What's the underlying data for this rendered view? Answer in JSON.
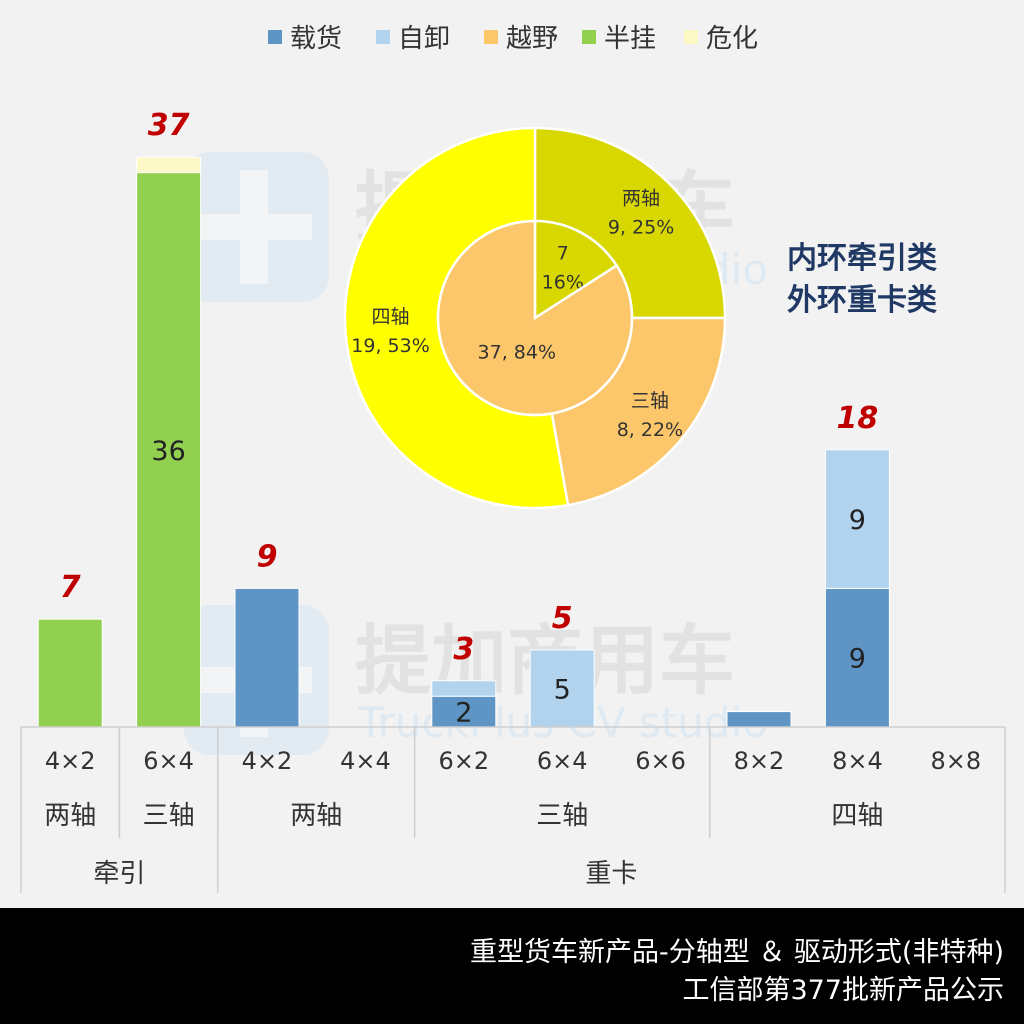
{
  "chart_data": [
    {
      "type": "bar",
      "stacked": true,
      "legend": {
        "placement": "top",
        "entries": [
          "载货",
          "自卸",
          "越野",
          "半挂",
          "危化"
        ]
      },
      "colors": {
        "载货": "#5e95c5",
        "自卸": "#b1d3ee",
        "越野": "#fcc76a",
        "半挂": "#92d050",
        "危化": "#fdf9c6"
      },
      "categories": [
        {
          "drive": "4×2",
          "axle": "两轴",
          "group": "牵引"
        },
        {
          "drive": "6×4",
          "axle": "三轴",
          "group": "牵引"
        },
        {
          "drive": "4×2",
          "axle": "两轴",
          "group": "重卡"
        },
        {
          "drive": "4×4",
          "axle": "两轴",
          "group": "重卡"
        },
        {
          "drive": "6×2",
          "axle": "三轴",
          "group": "重卡"
        },
        {
          "drive": "6×4",
          "axle": "三轴",
          "group": "重卡"
        },
        {
          "drive": "6×6",
          "axle": "三轴",
          "group": "重卡"
        },
        {
          "drive": "8×2",
          "axle": "四轴",
          "group": "重卡"
        },
        {
          "drive": "8×4",
          "axle": "四轴",
          "group": "重卡"
        },
        {
          "drive": "8×8",
          "axle": "四轴",
          "group": "重卡"
        }
      ],
      "axle_labels": [
        "两轴",
        "三轴",
        "两轴",
        "三轴",
        "四轴"
      ],
      "group_labels": [
        "牵引",
        "重卡"
      ],
      "series": [
        {
          "name": "载货",
          "values": [
            0,
            0,
            9,
            0,
            2,
            0,
            0,
            1,
            9,
            0
          ]
        },
        {
          "name": "自卸",
          "values": [
            0,
            0,
            0,
            0,
            1,
            5,
            0,
            0,
            9,
            0
          ]
        },
        {
          "name": "越野",
          "values": [
            0,
            0,
            0,
            0,
            0,
            0,
            0,
            0,
            0,
            0
          ]
        },
        {
          "name": "半挂",
          "values": [
            7,
            36,
            0,
            0,
            0,
            0,
            0,
            0,
            0,
            0
          ]
        },
        {
          "name": "危化",
          "values": [
            0,
            1,
            0,
            0,
            0,
            0,
            0,
            0,
            0,
            0
          ]
        }
      ],
      "segment_labels": [
        {
          "index": 1,
          "series": "半挂",
          "text": "36"
        },
        {
          "index": 4,
          "series": "载货",
          "text": "2"
        },
        {
          "index": 5,
          "series": "自卸",
          "text": "5"
        },
        {
          "index": 8,
          "series": "载货",
          "text": "9"
        },
        {
          "index": 8,
          "series": "自卸",
          "text": "9"
        }
      ],
      "totals": [
        "7",
        "37",
        "9",
        "",
        "3",
        "5",
        "",
        "",
        "18",
        ""
      ],
      "ylim": [
        0,
        40
      ],
      "grid": false
    },
    {
      "type": "pie",
      "variant": "doughnut",
      "note": [
        "内环牵引类",
        "外环重卡类"
      ],
      "inner": [
        {
          "value": 7,
          "color": "#d9d700",
          "label": [
            "7",
            "16%"
          ]
        },
        {
          "value": 37,
          "color": "#fcc76a",
          "label": [
            "37, 84%"
          ]
        }
      ],
      "outer": [
        {
          "value": 9,
          "color": "#d9d700",
          "label": [
            "两轴",
            "9, 25%"
          ]
        },
        {
          "value": 8,
          "color": "#fcc76a",
          "label": [
            "三轴",
            "8, 22%"
          ]
        },
        {
          "value": 19,
          "color": "#ffff00",
          "label": [
            "四轴",
            "19, 53%"
          ]
        }
      ]
    }
  ],
  "watermark": {
    "name": "提加商用车",
    "en": "TruckPlus CV studio"
  },
  "footer": {
    "line1": "重型货车新产品-分轴型 ＆ 驱动形式(非特种)",
    "line2": "工信部第377批新产品公示"
  }
}
